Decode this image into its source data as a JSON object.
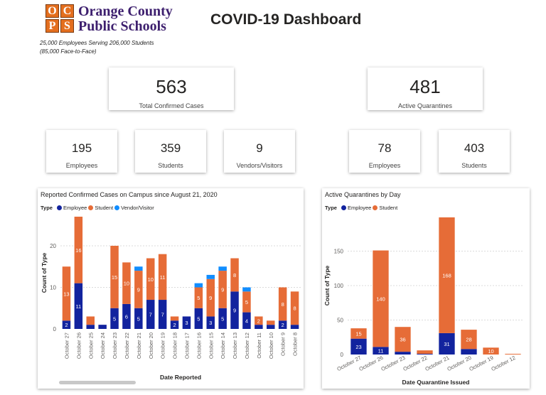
{
  "header": {
    "logo_letters": [
      "O",
      "C",
      "P",
      "S"
    ],
    "org_line1": "Orange County",
    "org_line2": "Public Schools",
    "tagline1": "25,000 Employees Serving 206,000 Students",
    "tagline2": "(85,000 Face-to-Face)",
    "title": "COVID-19 Dashboard"
  },
  "kpis": {
    "total_cases": {
      "value": "563",
      "label": "Total Confirmed Cases"
    },
    "active_quarantines": {
      "value": "481",
      "label": "Active Quarantines"
    },
    "case_employees": {
      "value": "195",
      "label": "Employees"
    },
    "case_students": {
      "value": "359",
      "label": "Students"
    },
    "case_visitors": {
      "value": "9",
      "label": "Vendors/Visitors"
    },
    "q_employees": {
      "value": "78",
      "label": "Employees"
    },
    "q_students": {
      "value": "403",
      "label": "Students"
    }
  },
  "colors": {
    "employee": "#12239e",
    "student": "#e66c37",
    "visitor": "#118dff"
  },
  "chart_data": [
    {
      "type": "bar",
      "stacked": true,
      "title": "Reported Confirmed Cases on Campus since August 21, 2020",
      "legend_title": "Type",
      "xlabel": "Date Reported",
      "ylabel": "Count of Type",
      "ylim": [
        0,
        27
      ],
      "yticks": [
        0,
        10,
        20
      ],
      "categories": [
        "October 27",
        "October 26",
        "October 25",
        "October 24",
        "October 23",
        "October 22",
        "October 21",
        "October 20",
        "October 19",
        "October 18",
        "October 17",
        "October 16",
        "October 15",
        "October 14",
        "October 13",
        "October 12",
        "October 11",
        "October 10",
        "October 9",
        "October 8"
      ],
      "series": [
        {
          "name": "Employee",
          "values": [
            2,
            11,
            1,
            1,
            5,
            6,
            5,
            7,
            7,
            2,
            3,
            5,
            3,
            5,
            9,
            4,
            1,
            1,
            2,
            1
          ]
        },
        {
          "name": "Student",
          "values": [
            13,
            16,
            2,
            0,
            15,
            10,
            9,
            10,
            11,
            1,
            0,
            5,
            9,
            9,
            8,
            5,
            2,
            1,
            8,
            8
          ]
        },
        {
          "name": "Vendor/Visitor",
          "values": [
            0,
            0,
            0,
            0,
            0,
            0,
            1,
            0,
            0,
            0,
            0,
            1,
            1,
            1,
            0,
            1,
            0,
            0,
            0,
            0
          ]
        }
      ],
      "data_labels": {
        "Employee": [
          2,
          11,
          null,
          null,
          5,
          6,
          5,
          7,
          7,
          2,
          3,
          5,
          3,
          5,
          9,
          4,
          null,
          null,
          2,
          null
        ],
        "Student": [
          13,
          16,
          null,
          null,
          15,
          10,
          9,
          10,
          11,
          null,
          null,
          5,
          9,
          9,
          8,
          5,
          2,
          null,
          8,
          8
        ]
      }
    },
    {
      "type": "bar",
      "stacked": true,
      "title": "Active Quarantines by Day",
      "legend_title": "Type",
      "xlabel": "Date Quarantine Issued",
      "ylabel": "Count of Type",
      "ylim": [
        0,
        200
      ],
      "yticks": [
        0,
        50,
        100,
        150
      ],
      "categories": [
        "October 27",
        "October 26",
        "October 23",
        "October 22",
        "October 21",
        "October 20",
        "October 19",
        "October 12"
      ],
      "series": [
        {
          "name": "Employee",
          "values": [
            23,
            11,
            4,
            1,
            31,
            8,
            0,
            0
          ]
        },
        {
          "name": "Student",
          "values": [
            15,
            140,
            36,
            5,
            168,
            28,
            10,
            1
          ]
        }
      ],
      "data_labels": {
        "Employee": [
          23,
          11,
          null,
          null,
          31,
          null,
          null,
          null
        ],
        "Student": [
          15,
          140,
          36,
          null,
          168,
          28,
          10,
          null
        ]
      }
    }
  ]
}
